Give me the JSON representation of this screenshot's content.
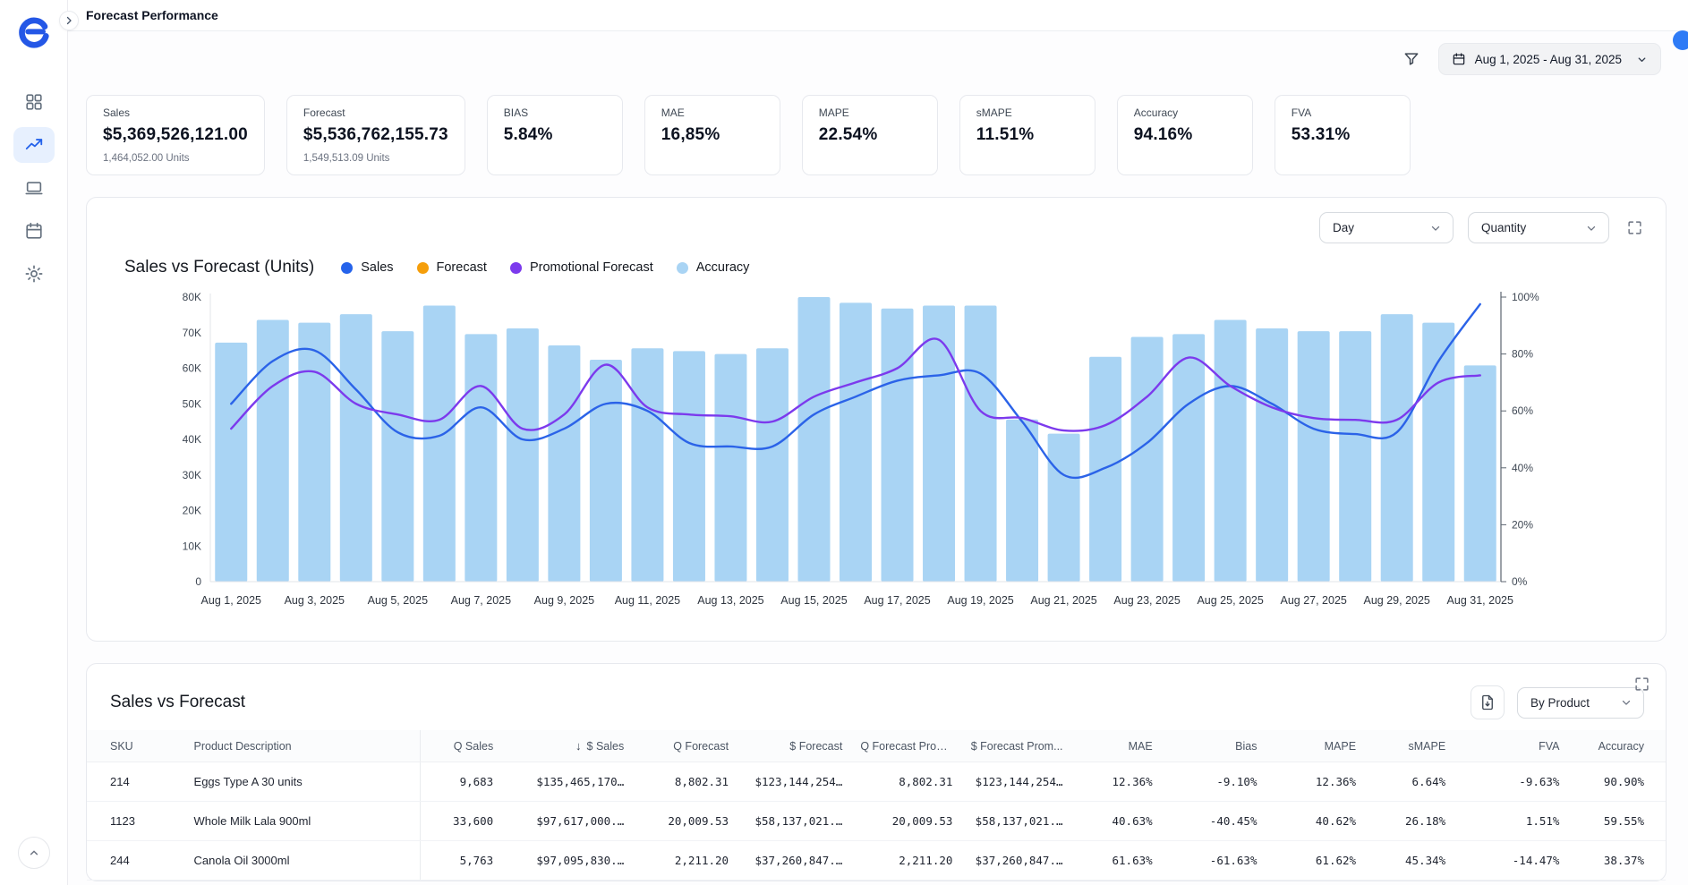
{
  "page": {
    "title": "Forecast Performance"
  },
  "toolbar": {
    "date_range": "Aug 1, 2025 - Aug 31, 2025"
  },
  "icons": {
    "sidebar": [
      "dashboard-grid-icon",
      "trend-line-icon",
      "laptop-icon",
      "calendar-icon",
      "gear-icon"
    ],
    "header": [
      "filter-icon",
      "calendar-icon",
      "chevron-down-icon"
    ],
    "cards": [
      "fullscreen-icon",
      "export-file-icon",
      "sort-desc-icon",
      "chevron-up-icon",
      "chevron-right-icon"
    ]
  },
  "kpis": [
    {
      "label": "Sales",
      "value": "$5,369,526,121.00",
      "sub": "1,464,052.00 Units"
    },
    {
      "label": "Forecast",
      "value": "$5,536,762,155.73",
      "sub": "1,549,513.09 Units"
    },
    {
      "label": "BIAS",
      "value": "5.84%"
    },
    {
      "label": "MAE",
      "value": "16,85%"
    },
    {
      "label": "MAPE",
      "value": "22.54%"
    },
    {
      "label": "sMAPE",
      "value": "11.51%"
    },
    {
      "label": "Accuracy",
      "value": "94.16%"
    },
    {
      "label": "FVA",
      "value": "53.31%"
    }
  ],
  "chart_card": {
    "title": "Sales vs Forecast (Units)",
    "interval_label": "Day",
    "metric_label": "Quantity",
    "legend": [
      {
        "label": "Sales",
        "color": "#2563eb"
      },
      {
        "label": "Forecast",
        "color": "#f59e0b"
      },
      {
        "label": "Promotional Forecast",
        "color": "#7c3aed"
      },
      {
        "label": "Accuracy",
        "color": "#a9d4f4"
      }
    ]
  },
  "chart_data": {
    "type": "combo",
    "x": [
      "Aug 1, 2025",
      "Aug 2, 2025",
      "Aug 3, 2025",
      "Aug 4, 2025",
      "Aug 5, 2025",
      "Aug 6, 2025",
      "Aug 7, 2025",
      "Aug 8, 2025",
      "Aug 9, 2025",
      "Aug 10, 2025",
      "Aug 11, 2025",
      "Aug 12, 2025",
      "Aug 13, 2025",
      "Aug 14, 2025",
      "Aug 15, 2025",
      "Aug 16, 2025",
      "Aug 17, 2025",
      "Aug 18, 2025",
      "Aug 19, 2025",
      "Aug 20, 2025",
      "Aug 21, 2025",
      "Aug 22, 2025",
      "Aug 23, 2025",
      "Aug 24, 2025",
      "Aug 25, 2025",
      "Aug 26, 2025",
      "Aug 27, 2025",
      "Aug 28, 2025",
      "Aug 29, 2025",
      "Aug 30, 2025",
      "Aug 31, 2025"
    ],
    "x_label_every": 2,
    "left_axis": {
      "min": 0,
      "max": 80000,
      "tick_step": 10000,
      "tick_labels": [
        "0",
        "10K",
        "20K",
        "30K",
        "40K",
        "50K",
        "60K",
        "70K",
        "80K"
      ]
    },
    "right_axis": {
      "min": 0,
      "max": 100,
      "tick_step": 20,
      "tick_labels": [
        "0%",
        "20%",
        "40%",
        "60%",
        "80%",
        "100%"
      ]
    },
    "series": [
      {
        "name": "Accuracy",
        "type": "bar",
        "axis": "right",
        "color": "#a9d4f4",
        "values": [
          84,
          92,
          91,
          94,
          88,
          97,
          87,
          89,
          83,
          78,
          82,
          81,
          80,
          82,
          100,
          98,
          96,
          97,
          97,
          57,
          52,
          79,
          86,
          87,
          92,
          89,
          88,
          88,
          94,
          91,
          76
        ]
      },
      {
        "name": "Sales",
        "type": "line",
        "axis": "left",
        "color": "#2b63e8",
        "values": [
          50000,
          62000,
          65000,
          54000,
          42000,
          41000,
          49000,
          40000,
          43000,
          50000,
          48000,
          39000,
          38000,
          38000,
          47000,
          52000,
          56500,
          58000,
          58500,
          45000,
          30000,
          32000,
          39000,
          50000,
          55000,
          50000,
          43000,
          41500,
          42000,
          62000,
          78000
        ]
      },
      {
        "name": "Promotional Forecast",
        "type": "line",
        "axis": "left",
        "color": "#7c3aed",
        "values": [
          43000,
          55000,
          59000,
          50000,
          47000,
          45500,
          55000,
          43000,
          47000,
          61000,
          49000,
          47000,
          46500,
          45000,
          52000,
          56000,
          60000,
          68000,
          48000,
          46000,
          42500,
          44000,
          52000,
          63000,
          55000,
          49000,
          46000,
          45500,
          45500,
          56000,
          58000
        ]
      }
    ]
  },
  "table_card": {
    "title": "Sales vs Forecast",
    "group_by_label": "By Product",
    "columns": [
      {
        "label": "SKU"
      },
      {
        "label": "Product Description"
      },
      {
        "label": "Q Sales"
      },
      {
        "label": "$ Sales",
        "sorted": "desc"
      },
      {
        "label": "Q Forecast"
      },
      {
        "label": "$ Forecast"
      },
      {
        "label": "Q Forecast Prom..."
      },
      {
        "label": "$ Forecast Prom..."
      },
      {
        "label": "MAE"
      },
      {
        "label": "Bias"
      },
      {
        "label": "MAPE"
      },
      {
        "label": "sMAPE"
      },
      {
        "label": "FVA"
      },
      {
        "label": "Accuracy"
      }
    ],
    "rows": [
      [
        "214",
        "Eggs Type A 30 units",
        "9,683",
        "$135,465,170…",
        "8,802.31",
        "$123,144,254…",
        "8,802.31",
        "$123,144,254…",
        "12.36%",
        "-9.10%",
        "12.36%",
        "6.64%",
        "-9.63%",
        "90.90%"
      ],
      [
        "1123",
        "Whole Milk Lala 900ml",
        "33,600",
        "$97,617,000.…",
        "20,009.53",
        "$58,137,021.…",
        "20,009.53",
        "$58,137,021.…",
        "40.63%",
        "-40.45%",
        "40.62%",
        "26.18%",
        "1.51%",
        "59.55%"
      ],
      [
        "244",
        "Canola Oil 3000ml",
        "5,763",
        "$97,095,830.…",
        "2,211.20",
        "$37,260,847.…",
        "2,211.20",
        "$37,260,847.…",
        "61.63%",
        "-61.63%",
        "61.62%",
        "45.34%",
        "-14.47%",
        "38.37%"
      ]
    ]
  }
}
